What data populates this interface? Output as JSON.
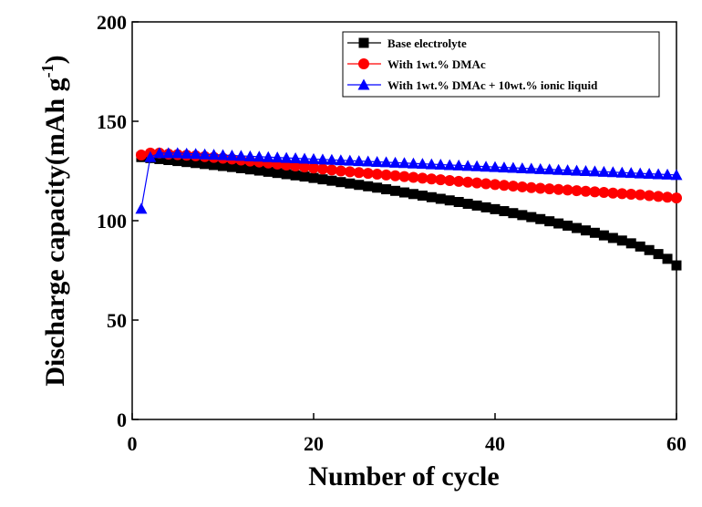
{
  "chart_data": {
    "type": "line",
    "x_label": "Number of cycle",
    "y_label": [
      "Discharge capacity(mAh g",
      "-1",
      ")"
    ],
    "xlim": [
      0,
      60
    ],
    "xticks": [
      0,
      20,
      40,
      60
    ],
    "ylim": [
      0,
      200
    ],
    "yticks": [
      0,
      50,
      100,
      150,
      200
    ],
    "grid": false,
    "legend": "upper right",
    "x": [
      1,
      2,
      3,
      4,
      5,
      6,
      7,
      8,
      9,
      10,
      11,
      12,
      13,
      14,
      15,
      16,
      17,
      18,
      19,
      20,
      21,
      22,
      23,
      24,
      25,
      26,
      27,
      28,
      29,
      30,
      31,
      32,
      33,
      34,
      35,
      36,
      37,
      38,
      39,
      40,
      41,
      42,
      43,
      44,
      45,
      46,
      47,
      48,
      49,
      50,
      51,
      52,
      53,
      54,
      55,
      56,
      57,
      58,
      59,
      60
    ],
    "series": [
      {
        "name": "Base electrolyte",
        "color": "#000000",
        "marker": "square",
        "values": [
          132,
          131.5,
          131,
          130.5,
          130,
          129.5,
          129,
          128.5,
          128,
          127.5,
          127,
          126.4,
          125.8,
          125.2,
          124.6,
          124,
          123.4,
          122.8,
          122.2,
          121.5,
          120.8,
          120.1,
          119.4,
          118.7,
          118,
          117.3,
          116.6,
          115.8,
          115,
          114.2,
          113.4,
          112.6,
          111.8,
          111,
          110.2,
          109.4,
          108.5,
          107.6,
          106.7,
          105.8,
          104.8,
          103.8,
          102.8,
          101.8,
          100.8,
          99.7,
          98.6,
          97.5,
          96.3,
          95.1,
          93.9,
          92.6,
          91.3,
          90,
          88.6,
          87,
          85.2,
          83.2,
          80.8,
          77.5
        ]
      },
      {
        "name": "With 1wt.% DMAc",
        "color": "#ff0000",
        "marker": "circle",
        "values": [
          133,
          134,
          134,
          133.5,
          133.2,
          132.9,
          132.6,
          132.2,
          131.8,
          131.4,
          131,
          130.5,
          130,
          129.5,
          129,
          128.5,
          128,
          127.5,
          127,
          126.5,
          126,
          125.5,
          125,
          124.6,
          124.2,
          123.8,
          123.4,
          123,
          122.6,
          122.2,
          121.8,
          121.4,
          121,
          120.6,
          120.2,
          119.8,
          119.4,
          119,
          118.6,
          118.2,
          117.8,
          117.4,
          117,
          116.6,
          116.3,
          116,
          115.7,
          115.4,
          115.1,
          114.8,
          114.5,
          114.2,
          113.9,
          113.6,
          113.3,
          113,
          112.6,
          112.2,
          111.8,
          111.4
        ]
      },
      {
        "name": "With 1wt.% DMAc + 10wt.% ionic liquid",
        "color": "#0000ff",
        "marker": "triangle",
        "values": [
          106,
          132,
          134,
          134,
          134,
          133.8,
          133.6,
          133.4,
          133.2,
          133,
          132.8,
          132.6,
          132.4,
          132.2,
          132,
          131.8,
          131.6,
          131.4,
          131.2,
          131,
          130.8,
          130.6,
          130.4,
          130.2,
          130,
          129.8,
          129.6,
          129.4,
          129.2,
          129,
          128.8,
          128.6,
          128.4,
          128.2,
          128,
          127.8,
          127.6,
          127.4,
          127.2,
          127,
          126.8,
          126.6,
          126.4,
          126.2,
          126,
          125.8,
          125.6,
          125.4,
          125.2,
          125,
          124.8,
          124.6,
          124.4,
          124.2,
          124,
          123.8,
          123.6,
          123.4,
          123.2,
          123
        ]
      }
    ]
  }
}
